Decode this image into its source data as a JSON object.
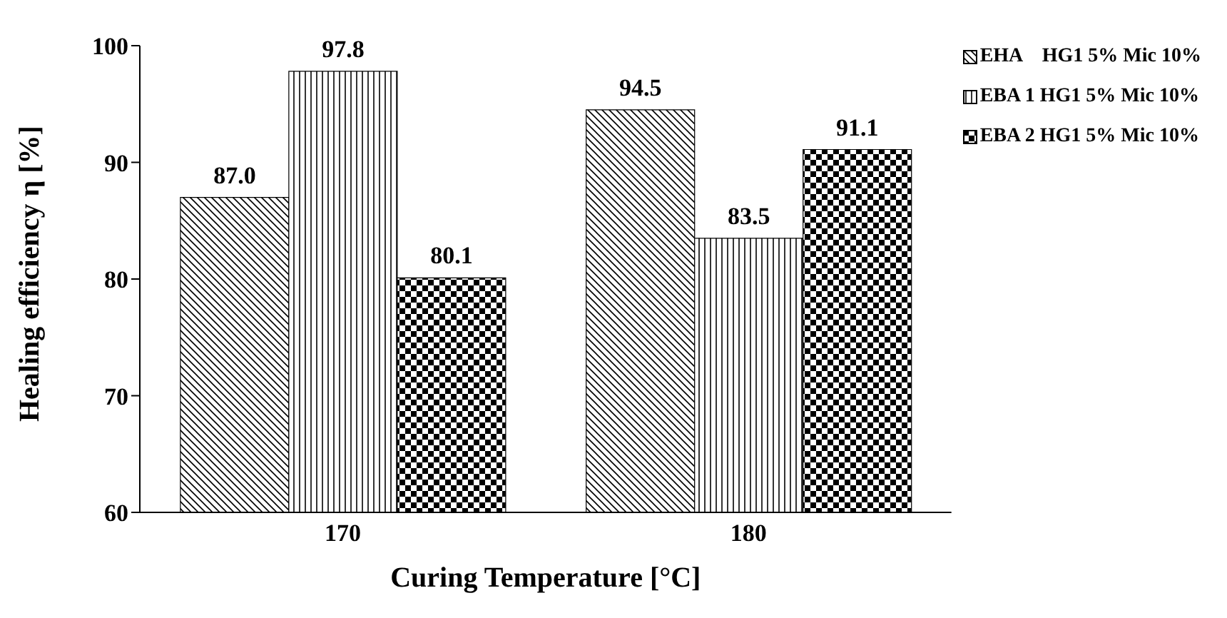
{
  "chart_data": {
    "type": "bar",
    "xlabel": "Curing Temperature [°C]",
    "ylabel": "Healing efficiency η [%]",
    "categories": [
      "170",
      "180"
    ],
    "series": [
      {
        "name": "EHA    HG1 5% Mic 10%",
        "color": "#000000",
        "values": [
          87.0,
          94.5
        ],
        "value_labels": [
          "87.0",
          "94.5"
        ]
      },
      {
        "name": "EBA 1 HG1 5% Mic 10%",
        "color": "#000000",
        "values": [
          97.8,
          83.5
        ],
        "value_labels": [
          "97.8",
          "83.5"
        ]
      },
      {
        "name": "EBA 2 HG1 5% Mic 10%",
        "color": "#000000",
        "values": [
          80.1,
          91.1
        ],
        "value_labels": [
          "80.1",
          "91.1"
        ]
      }
    ],
    "ylim": [
      60,
      100
    ],
    "yticks": [
      60,
      70,
      80,
      90,
      100
    ],
    "grid": false,
    "legend": "right"
  }
}
